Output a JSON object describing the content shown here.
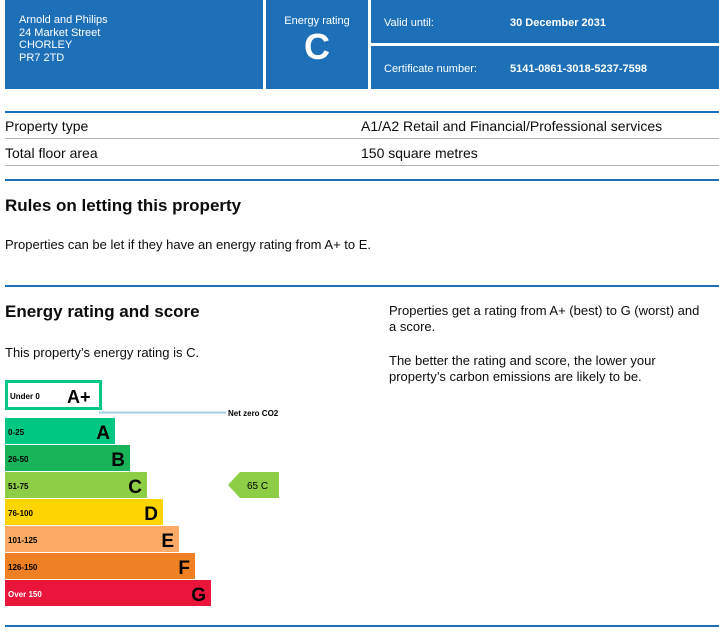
{
  "header": {
    "address": [
      "Arnold and Philips",
      "24 Market Street",
      "CHORLEY",
      "PR7 2TD"
    ],
    "rating_label": "Energy rating",
    "rating_letter": "C",
    "valid_until_label": "Valid until:",
    "valid_until_value": "30 December 2031",
    "cert_label": "Certificate number:",
    "cert_value": "5141-0861-3018-5237-7598"
  },
  "property": {
    "type_label": "Property type",
    "type_value": "A1/A2 Retail and Financial/Professional services",
    "area_label": "Total floor area",
    "area_value": "150 square metres"
  },
  "letting": {
    "heading": "Rules on letting this property",
    "text": "Properties can be let if they have an energy rating from A+ to E."
  },
  "energy": {
    "heading": "Energy rating and score",
    "current_text": "This property’s energy rating is C.",
    "info_1": "Properties get a rating from A+ (best) to G (worst) and a score.",
    "info_2": "The better the rating and score, the lower your property’s carbon emissions are likely to be."
  },
  "chart_data": {
    "type": "bar",
    "net_zero_label": "Net zero CO2",
    "bands": [
      {
        "range": "Under 0",
        "letter": "A+",
        "color": "#ffffff",
        "border": "#00c781"
      },
      {
        "range": "0-25",
        "letter": "A",
        "color": "#00c781"
      },
      {
        "range": "26-50",
        "letter": "B",
        "color": "#19b459"
      },
      {
        "range": "51-75",
        "letter": "C",
        "color": "#8dce46"
      },
      {
        "range": "76-100",
        "letter": "D",
        "color": "#ffd500"
      },
      {
        "range": "101-125",
        "letter": "E",
        "color": "#fcaa65"
      },
      {
        "range": "126-150",
        "letter": "F",
        "color": "#ef8023"
      },
      {
        "range": "Over 150",
        "letter": "G",
        "color": "#e9153b"
      }
    ],
    "current": {
      "score": 65,
      "letter": "C",
      "label": "65 C",
      "color": "#8dce46"
    }
  }
}
